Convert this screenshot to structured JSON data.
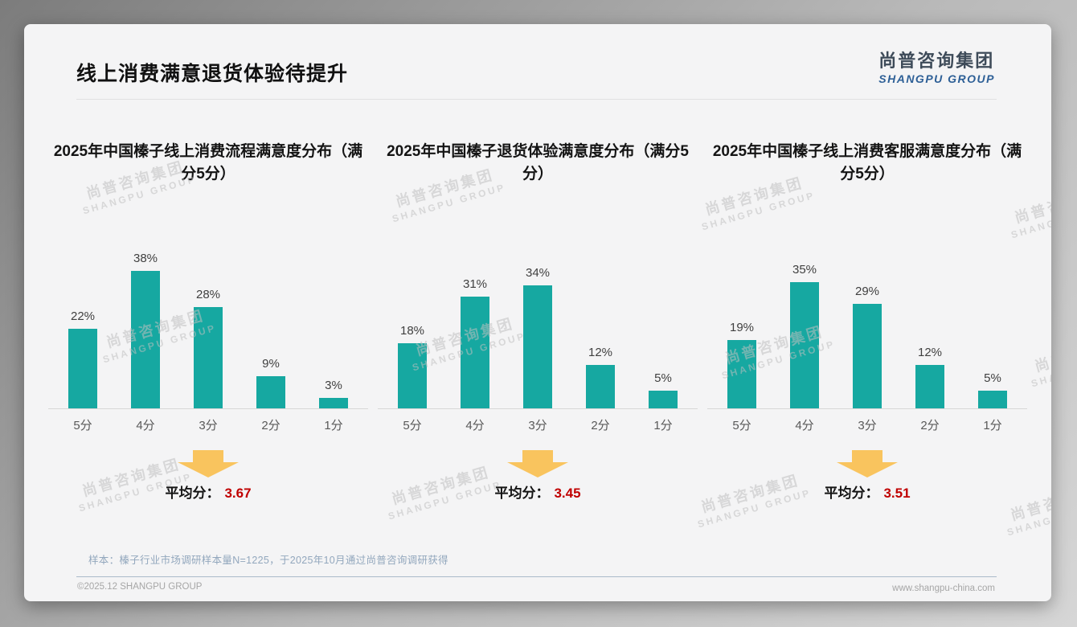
{
  "slide": {
    "title": "线上消费满意退货体验待提升",
    "logo": {
      "cn": "尚普咨询集团",
      "en": "SHANGPU GROUP"
    },
    "watermark": {
      "cn": "尚普咨询集团",
      "en": "SHANGPU GROUP"
    },
    "sample_note": "样本：榛子行业市场调研样本量N=1225，于2025年10月通过尚普咨询调研获得",
    "footer_left": "©2025.12 SHANGPU GROUP",
    "footer_right": "www.shangpu-china.com"
  },
  "colors": {
    "bar_teal": "#16a8a1",
    "average_red": "#c00000",
    "arrow_yellow": "#f9c45e"
  },
  "chart_data": [
    {
      "type": "bar",
      "title": "2025年中国榛子线上消费流程满意度分布（满分5分）",
      "categories": [
        "5分",
        "4分",
        "3分",
        "2分",
        "1分"
      ],
      "values": [
        22,
        38,
        28,
        9,
        3
      ],
      "unit": "%",
      "ylim": [
        0,
        40
      ],
      "grid": false,
      "average_label": "平均分：",
      "average": "3.67"
    },
    {
      "type": "bar",
      "title": "2025年中国榛子退货体验满意度分布（满分5分）",
      "categories": [
        "5分",
        "4分",
        "3分",
        "2分",
        "1分"
      ],
      "values": [
        18,
        31,
        34,
        12,
        5
      ],
      "unit": "%",
      "ylim": [
        0,
        40
      ],
      "grid": false,
      "average_label": "平均分：",
      "average": "3.45"
    },
    {
      "type": "bar",
      "title": "2025年中国榛子线上消费客服满意度分布（满分5分）",
      "categories": [
        "5分",
        "4分",
        "3分",
        "2分",
        "1分"
      ],
      "values": [
        19,
        35,
        29,
        12,
        5
      ],
      "unit": "%",
      "ylim": [
        0,
        40
      ],
      "grid": false,
      "average_label": "平均分：",
      "average": "3.51"
    }
  ]
}
